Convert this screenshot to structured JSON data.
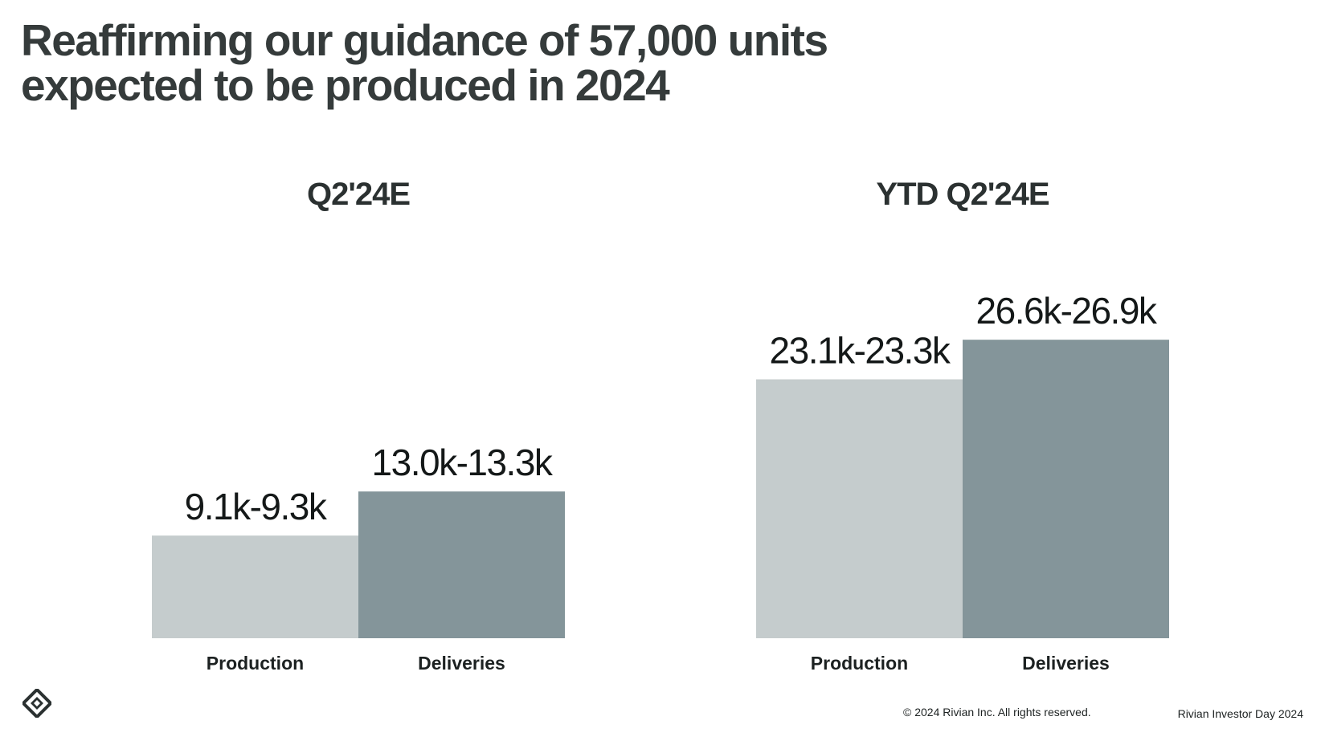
{
  "slide": {
    "headline_line1": "Reaffirming our guidance of 57,000 units",
    "headline_line2": "expected to be produced in 2024",
    "copyright": "© 2024 Rivian Inc. All rights reserved.",
    "event": "Rivian Investor Day 2024",
    "logo_icon": "rivian-compass-logo-icon"
  },
  "colors": {
    "production": "#c5cccd",
    "deliveries": "#84959a",
    "text": "#333a3a"
  },
  "chart_data": [
    {
      "type": "bar",
      "title": "Q2'24E",
      "xlabel": "",
      "ylabel": "",
      "grid": false,
      "categories": [
        "Production",
        "Deliveries"
      ],
      "values": [
        9.2,
        13.15
      ],
      "ranges": [
        [
          9.1,
          9.3
        ],
        [
          13.0,
          13.3
        ]
      ],
      "data_labels": [
        "9.1k-9.3k",
        "13.0k-13.3k"
      ],
      "unit": "k",
      "ylim": [
        0,
        30
      ]
    },
    {
      "type": "bar",
      "title": "YTD Q2'24E",
      "xlabel": "",
      "ylabel": "",
      "grid": false,
      "categories": [
        "Production",
        "Deliveries"
      ],
      "values": [
        23.2,
        26.75
      ],
      "ranges": [
        [
          23.1,
          23.3
        ],
        [
          26.6,
          26.9
        ]
      ],
      "data_labels": [
        "23.1k-23.3k",
        "26.6k-26.9k"
      ],
      "unit": "k",
      "ylim": [
        0,
        30
      ]
    }
  ]
}
